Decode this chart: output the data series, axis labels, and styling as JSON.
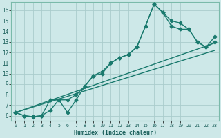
{
  "xlabel": "Humidex (Indice chaleur)",
  "bg_color": "#cde8e8",
  "grid_color": "#aacccc",
  "line_color": "#1a7a6e",
  "markersize": 2.5,
  "linewidth": 1.0,
  "xlim": [
    -0.5,
    23.5
  ],
  "ylim": [
    5.5,
    16.8
  ],
  "xticks": [
    0,
    1,
    2,
    3,
    4,
    5,
    6,
    7,
    8,
    9,
    10,
    11,
    12,
    13,
    14,
    15,
    16,
    17,
    18,
    19,
    20,
    21,
    22,
    23
  ],
  "yticks": [
    6,
    7,
    8,
    9,
    10,
    11,
    12,
    13,
    14,
    15,
    16
  ],
  "series1_x": [
    0,
    1,
    2,
    3,
    4,
    5,
    6,
    7,
    8,
    9,
    10,
    11,
    12,
    13,
    14,
    15,
    16,
    17,
    18,
    19,
    20,
    21,
    22,
    23
  ],
  "series1_y": [
    6.3,
    6.0,
    5.9,
    6.0,
    6.5,
    7.5,
    6.3,
    7.5,
    8.8,
    9.8,
    10.2,
    11.0,
    11.5,
    11.8,
    12.5,
    14.5,
    16.6,
    15.8,
    15.0,
    14.8,
    14.2,
    13.0,
    12.5,
    13.5
  ],
  "series2_x": [
    0,
    1,
    2,
    3,
    4,
    5,
    6,
    7,
    8,
    9,
    10,
    11,
    12,
    13,
    14,
    15,
    16,
    17,
    18,
    19,
    20,
    21,
    22,
    23
  ],
  "series2_y": [
    6.3,
    6.0,
    5.9,
    6.0,
    7.5,
    7.5,
    7.5,
    8.0,
    8.8,
    9.8,
    10.0,
    11.0,
    11.5,
    11.8,
    12.5,
    14.5,
    16.6,
    15.8,
    14.5,
    14.2,
    14.2,
    13.0,
    12.5,
    13.0
  ],
  "series3_x": [
    0,
    23
  ],
  "series3_y": [
    6.3,
    12.9
  ],
  "series4_x": [
    0,
    23
  ],
  "series4_y": [
    6.3,
    12.2
  ]
}
